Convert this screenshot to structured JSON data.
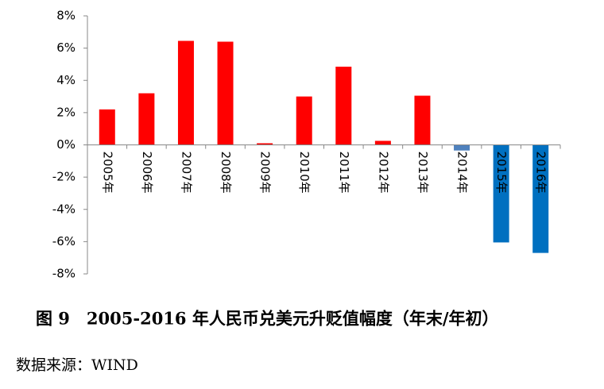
{
  "chart_data": {
    "type": "bar",
    "categories": [
      "2005年",
      "2006年",
      "2007年",
      "2008年",
      "2009年",
      "2010年",
      "2011年",
      "2012年",
      "2013年",
      "2014年",
      "2015年",
      "2016年"
    ],
    "values": [
      2.2,
      3.2,
      6.45,
      6.4,
      0.1,
      3.0,
      4.85,
      0.25,
      3.05,
      -0.35,
      -6.05,
      -6.7
    ],
    "colors": [
      "#ff0000",
      "#ff0000",
      "#ff0000",
      "#ff0000",
      "#ff0000",
      "#ff0000",
      "#ff0000",
      "#ff0000",
      "#ff0000",
      "#4f81bd",
      "#0070c0",
      "#0070c0"
    ],
    "ylim": [
      -8,
      8
    ],
    "yticks": [
      {
        "value": -8,
        "label": "-8%"
      },
      {
        "value": -6,
        "label": "-6%"
      },
      {
        "value": -4,
        "label": "-4%"
      },
      {
        "value": -2,
        "label": "-2%"
      },
      {
        "value": 0,
        "label": "0%"
      },
      {
        "value": 2,
        "label": "2%"
      },
      {
        "value": 4,
        "label": "4%"
      },
      {
        "value": 6,
        "label": "6%"
      },
      {
        "value": 8,
        "label": "8%"
      }
    ],
    "grid": false,
    "caption": "图 9　2005-2016 年人民币兑美元升贬值幅度（年末/年初）",
    "source": "数据来源：WIND"
  }
}
